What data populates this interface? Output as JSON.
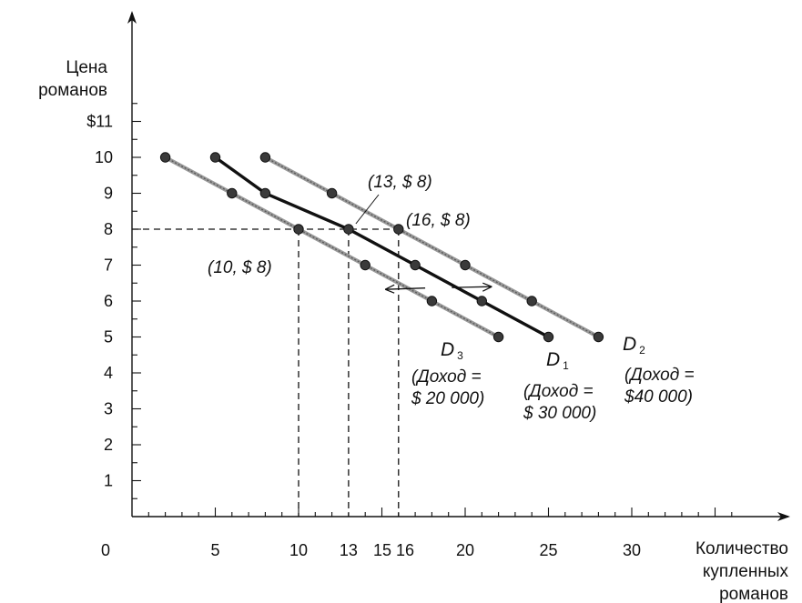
{
  "chart_data": {
    "type": "line",
    "ylabel_lines": [
      "Цена",
      "романов"
    ],
    "xlabel_lines": [
      "Количество",
      "купленных",
      "романов"
    ],
    "xlim": [
      0,
      36
    ],
    "ylim": [
      0,
      12
    ],
    "y_ticks": [
      {
        "value": 1,
        "label": "1"
      },
      {
        "value": 2,
        "label": "2"
      },
      {
        "value": 3,
        "label": "3"
      },
      {
        "value": 4,
        "label": "4"
      },
      {
        "value": 5,
        "label": "5"
      },
      {
        "value": 6,
        "label": "6"
      },
      {
        "value": 7,
        "label": "7"
      },
      {
        "value": 8,
        "label": "8"
      },
      {
        "value": 9,
        "label": "9"
      },
      {
        "value": 10,
        "label": "10"
      },
      {
        "value": 11,
        "label": "$11"
      }
    ],
    "x_tick_labels": [
      {
        "value": 0,
        "label": "0"
      },
      {
        "value": 5,
        "label": "5"
      },
      {
        "value": 10,
        "label": "10"
      },
      {
        "value": 13,
        "label": "13"
      },
      {
        "value": 15,
        "label": "15"
      },
      {
        "value": 16,
        "label": "16"
      },
      {
        "value": 20,
        "label": "20"
      },
      {
        "value": 25,
        "label": "25"
      },
      {
        "value": 30,
        "label": "30"
      }
    ],
    "series": [
      {
        "name": "D1",
        "name_main": "D",
        "name_sub": "1",
        "income_lines": [
          "(Доход =",
          "$ 30 000)"
        ],
        "style": "solid",
        "x": [
          5,
          8,
          13,
          17,
          21,
          25
        ],
        "y": [
          10,
          9,
          8,
          7,
          6,
          5
        ]
      },
      {
        "name": "D2",
        "name_main": "D",
        "name_sub": "2",
        "income_lines": [
          "(Доход =",
          "$40 000)"
        ],
        "style": "light",
        "x": [
          8,
          12,
          16,
          20,
          24,
          28
        ],
        "y": [
          10,
          9,
          8,
          7,
          6,
          5
        ]
      },
      {
        "name": "D3",
        "name_main": "D",
        "name_sub": "3",
        "income_lines": [
          "(Доход =",
          "$ 20 000)"
        ],
        "style": "light",
        "x": [
          2,
          6,
          10,
          14,
          18,
          22
        ],
        "y": [
          10,
          9,
          8,
          7,
          6,
          5
        ]
      }
    ],
    "reference_price": 8,
    "reference_quantities": [
      10,
      13,
      16
    ],
    "annotations": [
      {
        "text": "(10, $ 8)",
        "x": 10,
        "y": 8
      },
      {
        "text": "(13, $ 8)",
        "x": 13,
        "y": 8
      },
      {
        "text": "(16, $ 8)",
        "x": 16,
        "y": 8
      }
    ],
    "grid": false,
    "legend": "none"
  }
}
